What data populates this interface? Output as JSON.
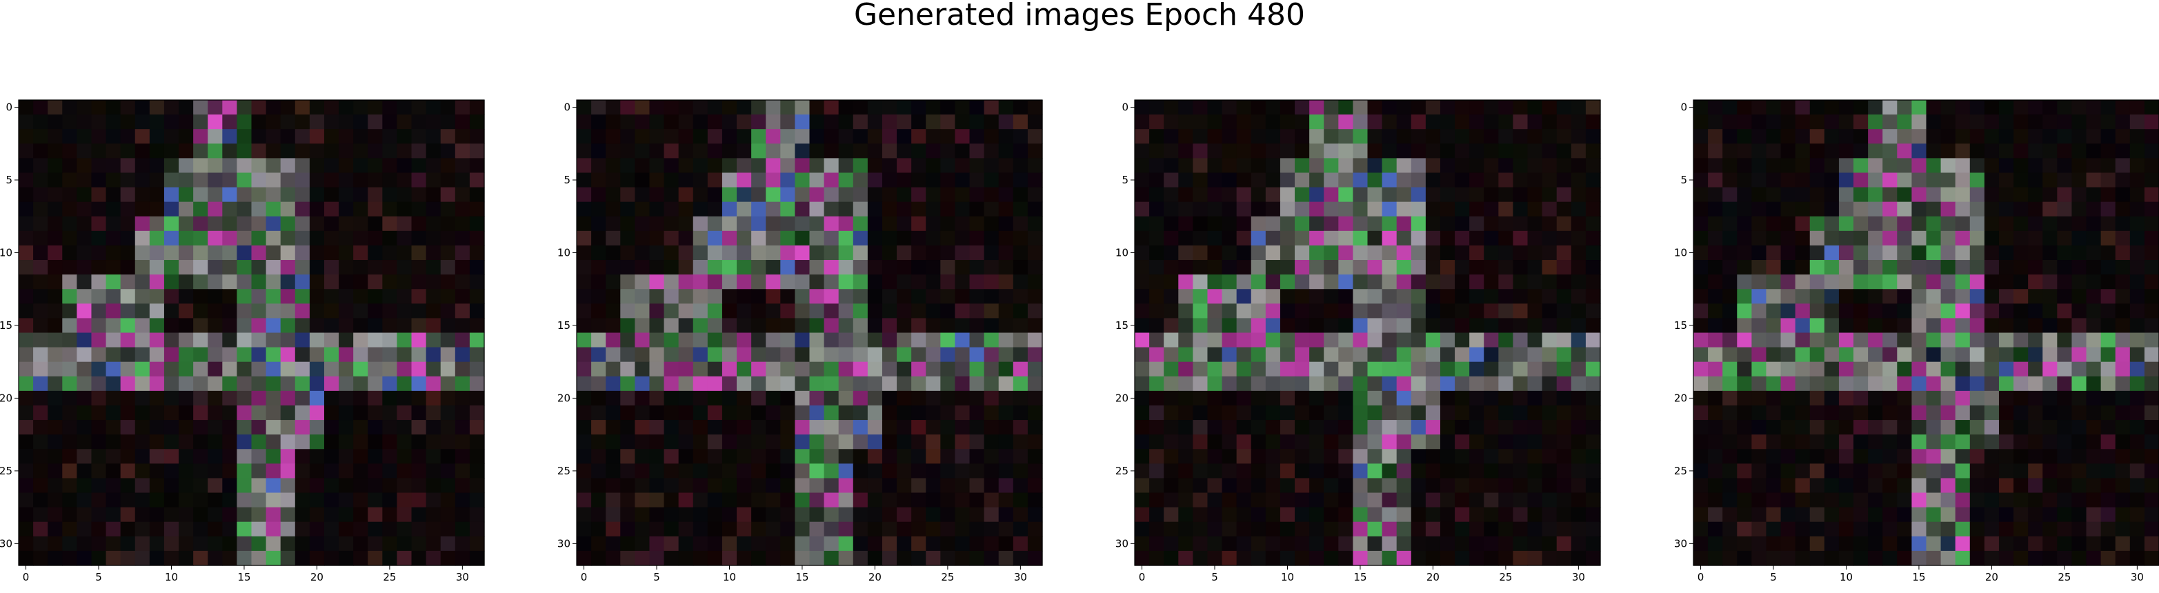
{
  "figure": {
    "title": "Generated images Epoch 480"
  },
  "chart_data": [
    {
      "type": "heatmap",
      "panel": 1,
      "pattern_seed": 11,
      "grid": [
        32,
        32
      ],
      "xticks": [
        0,
        5,
        10,
        15,
        20,
        25,
        30
      ],
      "yticks": [
        0,
        5,
        10,
        15,
        20,
        25,
        30
      ],
      "xlim": [
        -0.5,
        31.5
      ],
      "ylim": [
        31.5,
        -0.5
      ],
      "colormap": "rgb"
    },
    {
      "type": "heatmap",
      "panel": 2,
      "pattern_seed": 22,
      "grid": [
        32,
        32
      ],
      "xticks": [
        0,
        5,
        10,
        15,
        20,
        25,
        30
      ],
      "yticks": [
        0,
        5,
        10,
        15,
        20,
        25,
        30
      ],
      "xlim": [
        -0.5,
        31.5
      ],
      "ylim": [
        31.5,
        -0.5
      ],
      "colormap": "rgb"
    },
    {
      "type": "heatmap",
      "panel": 3,
      "pattern_seed": 33,
      "grid": [
        32,
        32
      ],
      "xticks": [
        0,
        5,
        10,
        15,
        20,
        25,
        30
      ],
      "yticks": [
        0,
        5,
        10,
        15,
        20,
        25,
        30
      ],
      "xlim": [
        -0.5,
        31.5
      ],
      "ylim": [
        31.5,
        -0.5
      ],
      "colormap": "rgb"
    },
    {
      "type": "heatmap",
      "panel": 4,
      "pattern_seed": 44,
      "grid": [
        32,
        32
      ],
      "xticks": [
        0,
        5,
        10,
        15,
        20,
        25,
        30
      ],
      "yticks": [
        0,
        5,
        10,
        15,
        20,
        25,
        30
      ],
      "xlim": [
        -0.5,
        31.5
      ],
      "ylim": [
        31.5,
        -0.5
      ],
      "colormap": "rgb"
    }
  ]
}
